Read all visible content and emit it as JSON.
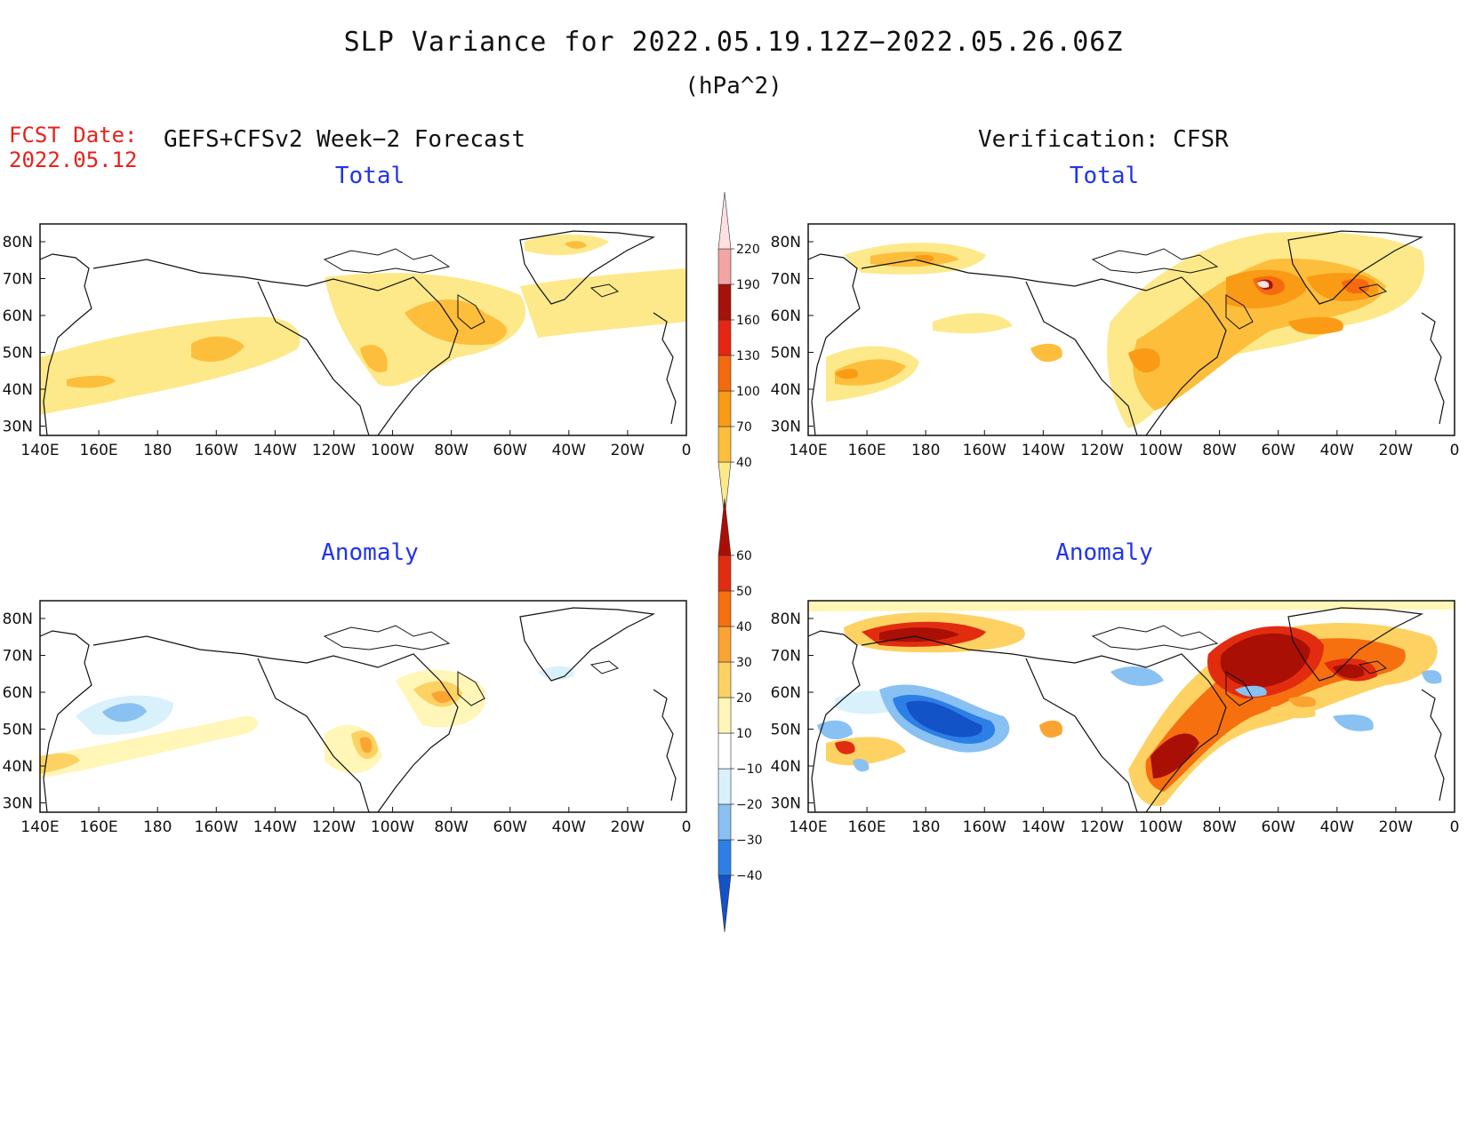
{
  "figure": {
    "title": "SLP Variance for 2022.05.19.12Z−2022.05.26.06Z",
    "units": "(hPa^2)",
    "fcst_date_label": "FCST Date:",
    "fcst_date": "2022.05.12",
    "left_header": "GEFS+CFSv2 Week−2 Forecast",
    "right_header": "Verification: CFSR"
  },
  "axes": {
    "lat_labels": [
      "80N",
      "70N",
      "60N",
      "50N",
      "40N",
      "30N"
    ],
    "lon_labels": [
      "140E",
      "160E",
      "180",
      "160W",
      "140W",
      "120W",
      "100W",
      "80W",
      "60W",
      "40W",
      "20W",
      "0"
    ]
  },
  "panels": [
    {
      "id": "forecast-total",
      "title": "Total"
    },
    {
      "id": "verification-total",
      "title": "Total"
    },
    {
      "id": "forecast-anomaly",
      "title": "Anomaly"
    },
    {
      "id": "verification-anomaly",
      "title": "Anomaly"
    }
  ],
  "colorbars": {
    "total": {
      "levels": [
        "40",
        "70",
        "100",
        "130",
        "160",
        "190",
        "220"
      ],
      "colors": [
        "#fde98a",
        "#fdbe3c",
        "#f99b14",
        "#f56a0e",
        "#e62512",
        "#a51207",
        "#f3a5a5",
        "#fde0e0"
      ]
    },
    "anomaly": {
      "levels": [
        "−40",
        "−30",
        "−20",
        "−10",
        "10",
        "20",
        "30",
        "40",
        "50",
        "60"
      ],
      "colors": [
        "#1452c8",
        "#2c7fe6",
        "#88c1f2",
        "#d8f1fb",
        "#ffffff",
        "#fff6b8",
        "#fdd262",
        "#fba432",
        "#f6700f",
        "#e22c10",
        "#a90f05"
      ]
    }
  },
  "colors": {
    "title_text": "#111111",
    "fcst_date": "#e8211c",
    "panel_title": "#2233ee"
  }
}
